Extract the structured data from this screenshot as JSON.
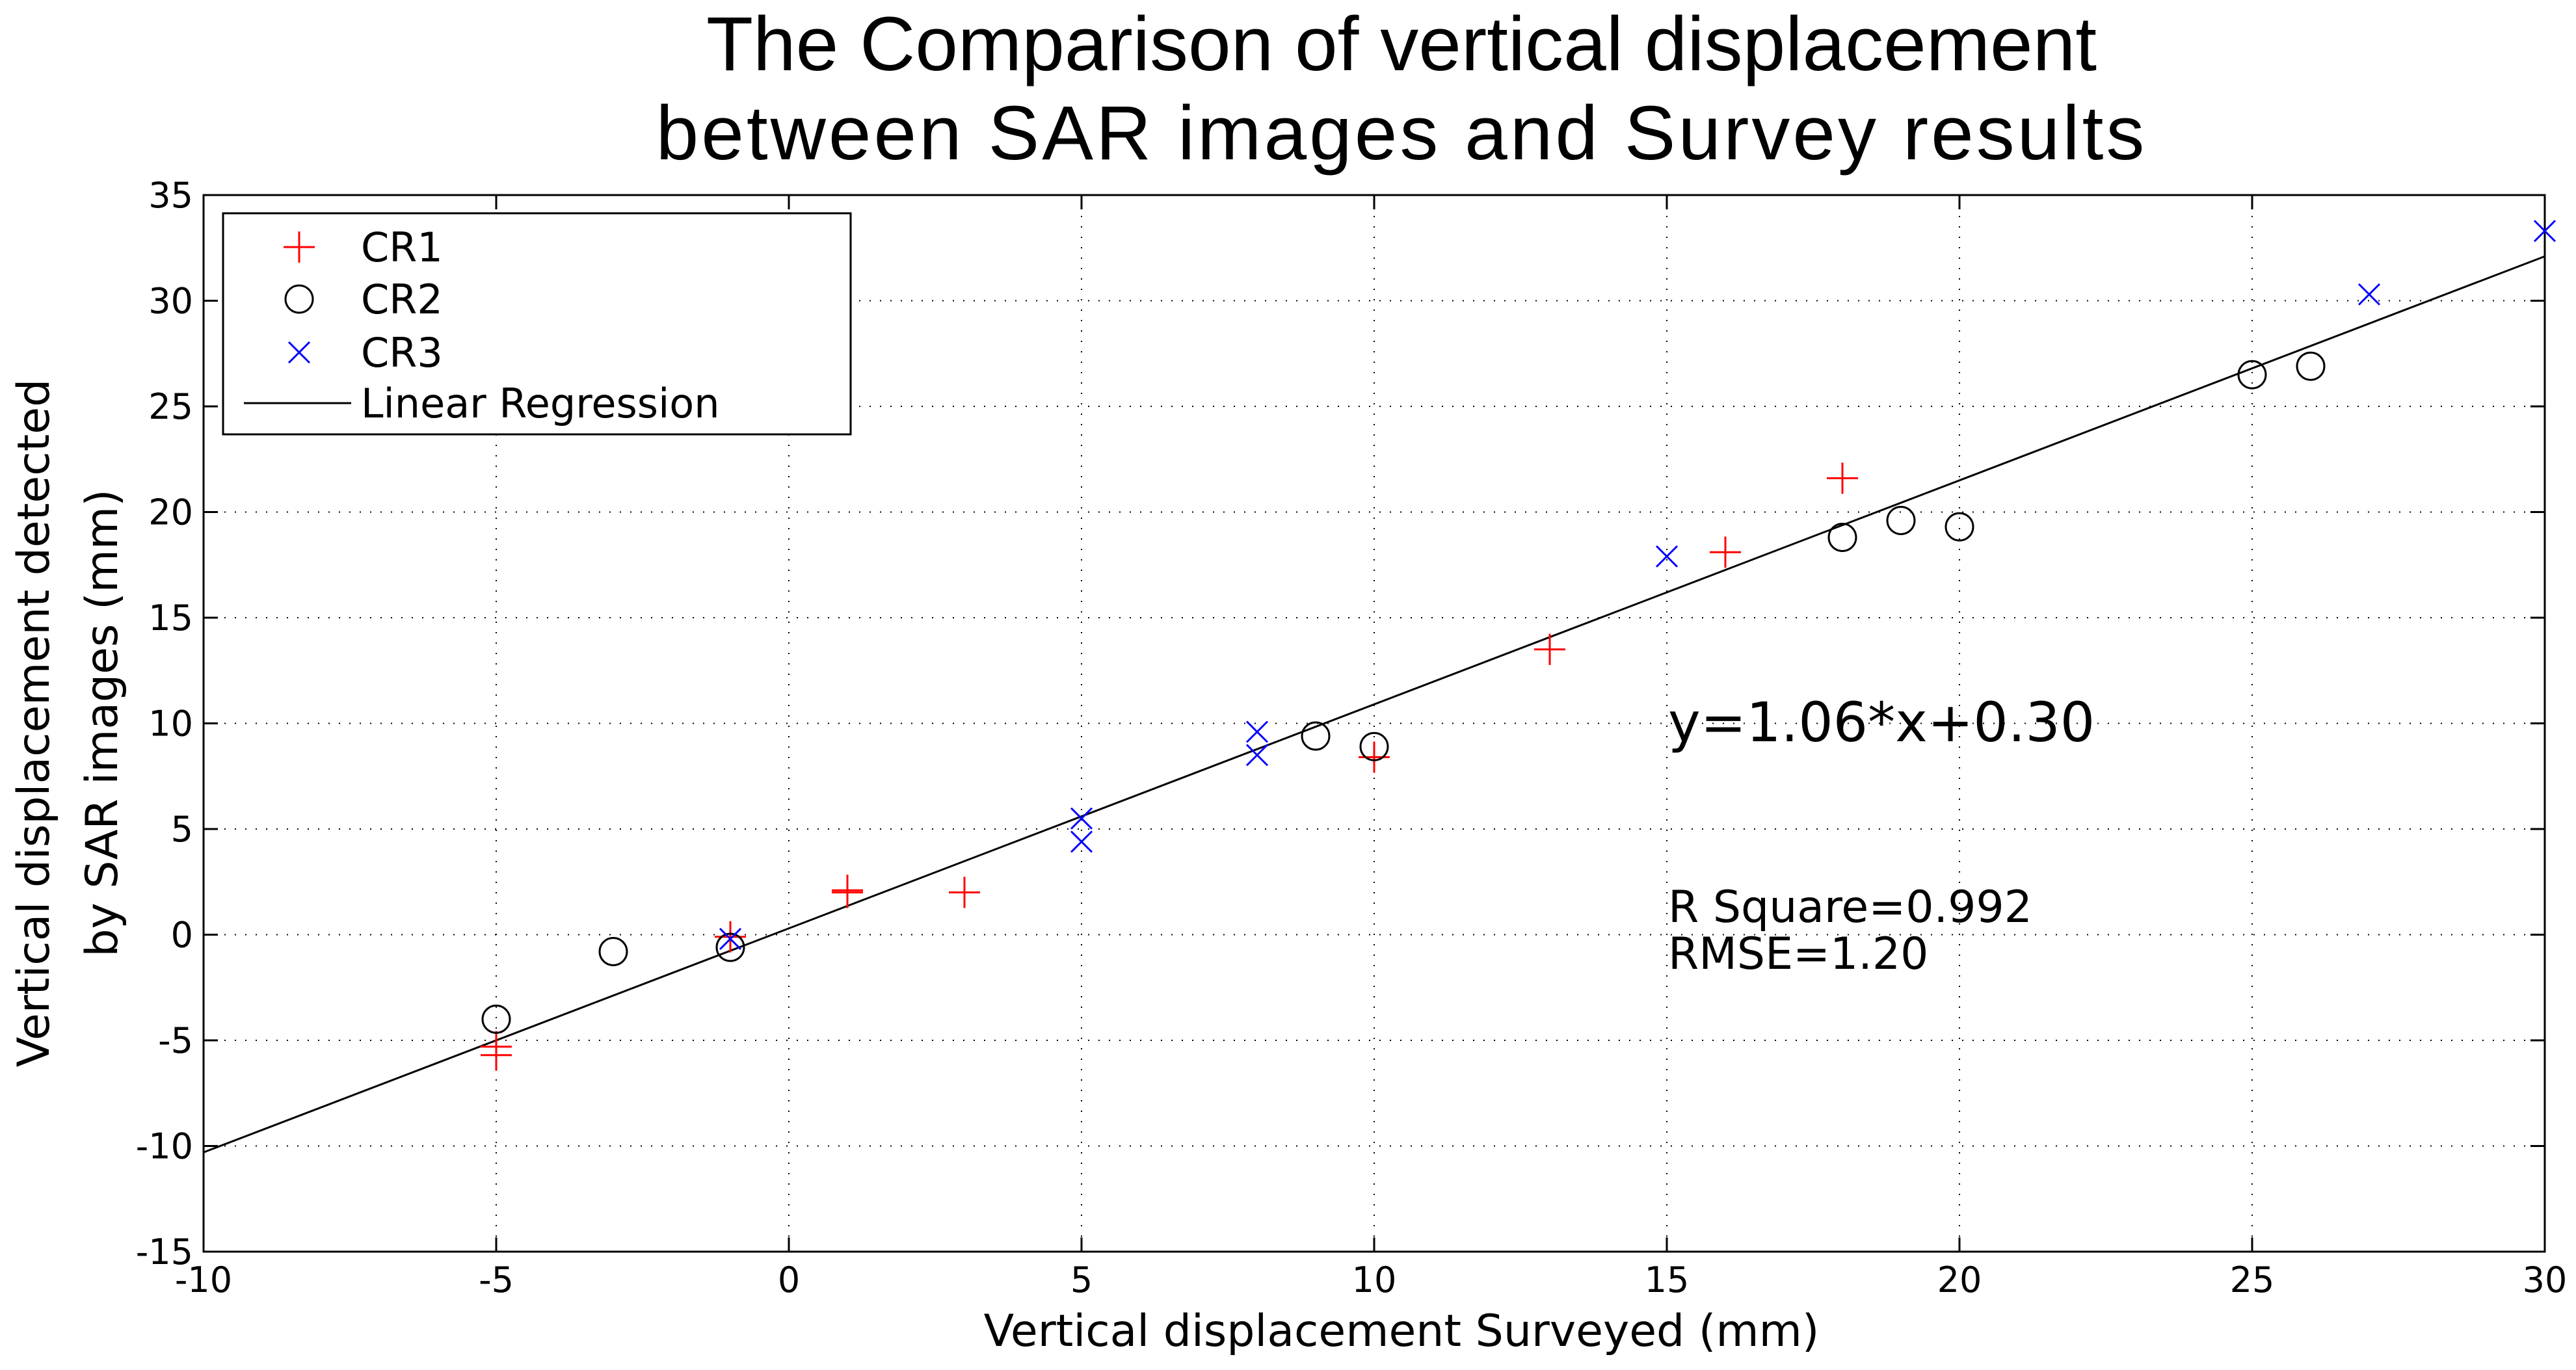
{
  "chart_data": {
    "type": "scatter",
    "title_lines": [
      "The Comparison of vertical displacement",
      "between SAR images and Survey results"
    ],
    "xlabel": "Vertical displacement Surveyed (mm)",
    "ylabel_lines": [
      "Vertical displacement detected",
      "by SAR images (mm)"
    ],
    "xlim": [
      -10,
      30
    ],
    "ylim": [
      -15,
      35
    ],
    "xticks": [
      -10,
      -5,
      0,
      5,
      10,
      15,
      20,
      25,
      30
    ],
    "yticks": [
      -15,
      -10,
      -5,
      0,
      5,
      10,
      15,
      20,
      25,
      30,
      35
    ],
    "grid": true,
    "legend_position": "top-left",
    "series": [
      {
        "name": "CR1",
        "marker": "plus",
        "color": "#ff0000",
        "points": [
          [
            -5,
            -5.3
          ],
          [
            -5,
            -5.7
          ],
          [
            -1,
            -0.1
          ],
          [
            1,
            2.1
          ],
          [
            1,
            2.0
          ],
          [
            3,
            2.0
          ],
          [
            10,
            8.4
          ],
          [
            13,
            13.5
          ],
          [
            16,
            18.1
          ],
          [
            18,
            21.6
          ]
        ]
      },
      {
        "name": "CR2",
        "marker": "circle",
        "color": "#000000",
        "points": [
          [
            -5,
            -4.0
          ],
          [
            -3,
            -0.8
          ],
          [
            -1,
            -0.6
          ],
          [
            9,
            9.4
          ],
          [
            10,
            8.9
          ],
          [
            18,
            18.8
          ],
          [
            19,
            19.6
          ],
          [
            20,
            19.3
          ],
          [
            25,
            26.5
          ],
          [
            26,
            26.9
          ]
        ]
      },
      {
        "name": "CR3",
        "marker": "x",
        "color": "#0000ff",
        "points": [
          [
            -1,
            -0.2
          ],
          [
            5,
            5.5
          ],
          [
            5,
            4.4
          ],
          [
            8,
            9.6
          ],
          [
            8,
            8.5
          ],
          [
            15,
            17.9
          ],
          [
            27,
            30.3
          ],
          [
            30,
            33.3
          ]
        ]
      }
    ],
    "regression": {
      "name": "Linear Regression",
      "color": "#000000",
      "slope": 1.06,
      "intercept": 0.3
    },
    "annotations": {
      "equation": "y=1.06*x+0.30",
      "r_square": "R Square=0.992",
      "rmse": "RMSE=1.20"
    }
  }
}
